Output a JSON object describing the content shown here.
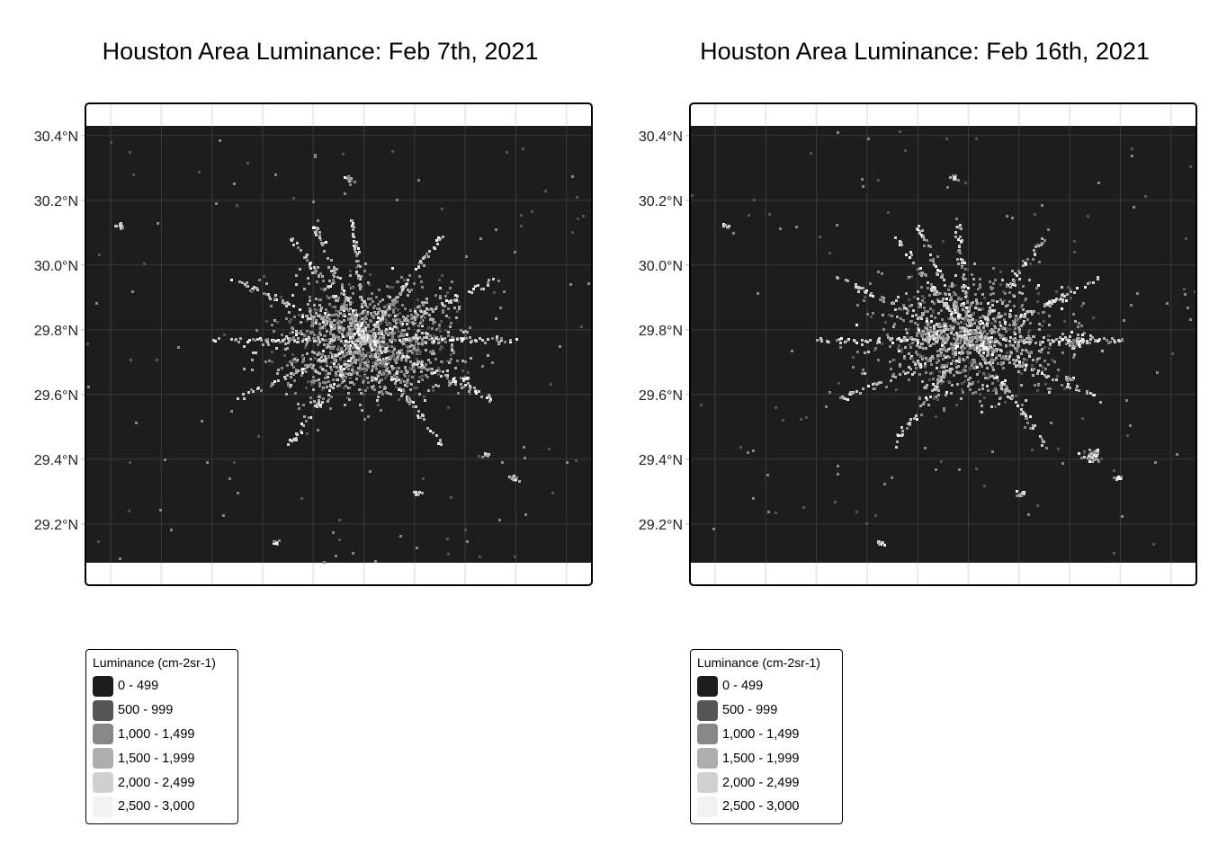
{
  "colors": {
    "background": "#1d1d1d",
    "grid": "#3a3a3a",
    "outer_grid": "#e5e5e5"
  },
  "chart_data": [
    {
      "type": "heatmap",
      "title": "Houston Area Luminance: Feb 7th, 2021",
      "ylabel": "",
      "xlabel": "",
      "y_ticks": [
        "30.4°N",
        "30.2°N",
        "30.0°N",
        "29.8°N",
        "29.6°N",
        "29.4°N",
        "29.2°N"
      ],
      "y_tick_values": [
        30.4,
        30.2,
        30.0,
        29.8,
        29.6,
        29.4,
        29.2
      ],
      "ylim": [
        29.08,
        30.43
      ],
      "intensity": 1.0,
      "legend": {
        "title": "Luminance (cm-2sr-1)",
        "position": "bottom-left",
        "items": [
          {
            "label": "0 - 499",
            "color": "#1d1d1d"
          },
          {
            "label": "500 - 999",
            "color": "#555555"
          },
          {
            "label": "1,000 - 1,499",
            "color": "#878787"
          },
          {
            "label": "1,500 - 1,999",
            "color": "#aeaeae"
          },
          {
            "label": "2,000 - 2,499",
            "color": "#d0d0d0"
          },
          {
            "label": "2,500 - 3,000",
            "color": "#f2f2f2"
          }
        ]
      }
    },
    {
      "type": "heatmap",
      "title": "Houston Area Luminance: Feb 16th, 2021",
      "ylabel": "",
      "xlabel": "",
      "y_ticks": [
        "30.4°N",
        "30.2°N",
        "30.0°N",
        "29.8°N",
        "29.6°N",
        "29.4°N",
        "29.2°N"
      ],
      "y_tick_values": [
        30.4,
        30.2,
        30.0,
        29.8,
        29.6,
        29.4,
        29.2
      ],
      "ylim": [
        29.08,
        30.43
      ],
      "intensity": 0.7,
      "legend": {
        "title": "Luminance (cm-2sr-1)",
        "position": "bottom-left",
        "items": [
          {
            "label": "0 - 499",
            "color": "#1d1d1d"
          },
          {
            "label": "500 - 999",
            "color": "#555555"
          },
          {
            "label": "1,000 - 1,499",
            "color": "#878787"
          },
          {
            "label": "1,500 - 1,999",
            "color": "#aeaeae"
          },
          {
            "label": "2,000 - 2,499",
            "color": "#d0d0d0"
          },
          {
            "label": "2,500 - 3,000",
            "color": "#f2f2f2"
          }
        ]
      }
    }
  ]
}
